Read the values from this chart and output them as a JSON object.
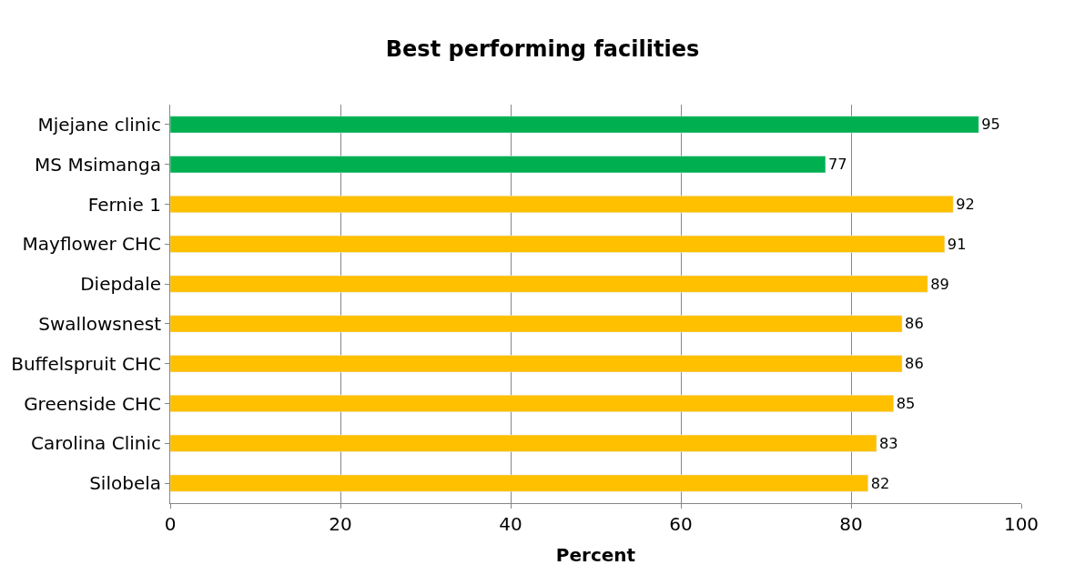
{
  "chart_data": {
    "type": "bar",
    "orientation": "horizontal",
    "title": "Best performing facilities",
    "xlabel": "Percent",
    "categories": [
      "Mjejane clinic",
      "MS Msimanga",
      "Fernie 1",
      "Mayflower CHC",
      "Diepdale",
      "Swallowsnest",
      "Buffelspruit CHC",
      "Greenside CHC",
      "Carolina Clinic",
      "Silobela"
    ],
    "values": [
      95,
      77,
      92,
      91,
      89,
      86,
      86,
      85,
      83,
      82
    ],
    "colors": [
      "#00b050",
      "#00b050",
      "#ffc000",
      "#ffc000",
      "#ffc000",
      "#ffc000",
      "#ffc000",
      "#ffc000",
      "#ffc000",
      "#ffc000"
    ],
    "xlim": [
      0,
      100
    ],
    "xticks": [
      0,
      20,
      40,
      60,
      80,
      100
    ],
    "grid": "x",
    "data_labels": true,
    "legend": false
  }
}
